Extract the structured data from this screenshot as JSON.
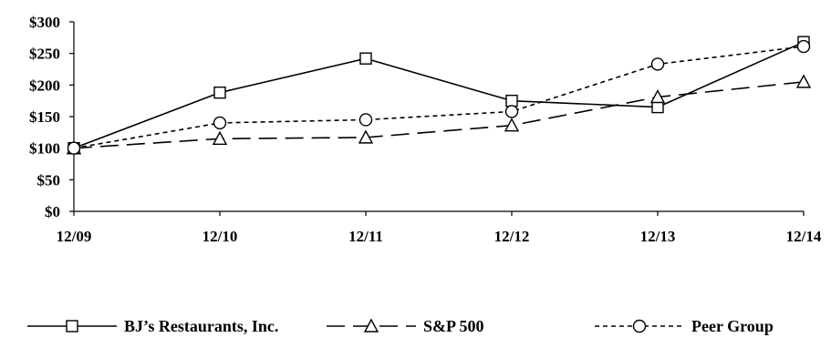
{
  "chart_data": {
    "type": "line",
    "title": "",
    "xlabel": "",
    "ylabel": "",
    "categories": [
      "12/09",
      "12/10",
      "12/11",
      "12/12",
      "12/13",
      "12/14"
    ],
    "ylim": [
      0,
      300
    ],
    "yticks": [
      0,
      50,
      100,
      150,
      200,
      250,
      300
    ],
    "ytick_labels": [
      "$0",
      "$50",
      "$100",
      "$150",
      "$200",
      "$250",
      "$300"
    ],
    "grid": false,
    "legend_position": "bottom",
    "series": [
      {
        "name": "BJ’s Restaurants, Inc.",
        "values": [
          100,
          188,
          242,
          175,
          165,
          268
        ],
        "marker": "square",
        "line_style": "solid",
        "color": "#000000"
      },
      {
        "name": "S&P 500",
        "values": [
          100,
          115,
          117,
          136,
          181,
          205
        ],
        "marker": "triangle",
        "line_style": "long-dash",
        "color": "#000000"
      },
      {
        "name": "Peer Group",
        "values": [
          100,
          140,
          145,
          158,
          233,
          261
        ],
        "marker": "circle",
        "line_style": "short-dash",
        "color": "#000000"
      }
    ]
  }
}
